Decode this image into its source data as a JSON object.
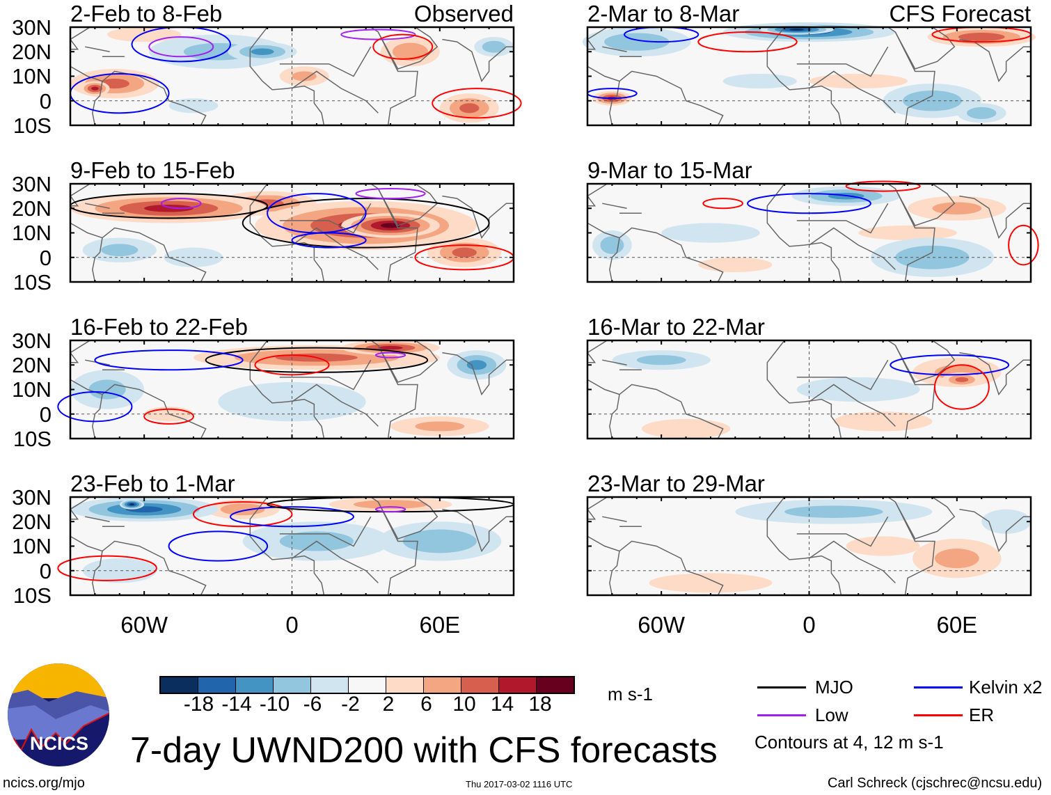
{
  "colorbar": {
    "colors": [
      "#0a2f5f",
      "#2166ac",
      "#4393c3",
      "#92c5de",
      "#d1e5f0",
      "#f7f7f7",
      "#fddbc7",
      "#f4a582",
      "#d6604d",
      "#b2182b",
      "#67001f"
    ],
    "labels": [
      "-18",
      "-14",
      "-10",
      "-6",
      "-2",
      "2",
      "6",
      "10",
      "14",
      "18"
    ],
    "units": "m s-1"
  },
  "lat_labels": [
    "30N",
    "20N",
    "10N",
    "0",
    "10S"
  ],
  "lon_labels": [
    "60W",
    "0",
    "60E"
  ],
  "legend": {
    "mjo": "MJO",
    "kelvin": "Kelvin x2",
    "low": "Low",
    "er": "ER",
    "contours_note": "Contours at 4, 12 m s-1",
    "colors": {
      "mjo": "#000000",
      "kelvin": "#0000ff",
      "low": "#a020f0",
      "er": "#ff0000"
    }
  },
  "title": "7-day UWND200 with CFS forecasts",
  "logo_text": "NCICS",
  "footer": {
    "url": "ncics.org/mjo",
    "timestamp": "Thu 2017-03-02 1116 UTC",
    "author": "Carl Schreck (cjschrec@ncsu.edu)"
  },
  "panels": [
    {
      "title": "2-Feb to 8-Feb",
      "label": "Observed",
      "blobs": [
        [
          -30,
          20,
          28,
          7,
          -6
        ],
        [
          -12,
          20,
          14,
          4,
          -10
        ],
        [
          -72,
          7,
          18,
          6,
          10
        ],
        [
          -80,
          5,
          6,
          3,
          14
        ],
        [
          48,
          20,
          12,
          6,
          8
        ],
        [
          72,
          -3,
          12,
          6,
          10
        ],
        [
          5,
          10,
          10,
          4,
          6
        ],
        [
          82,
          22,
          8,
          4,
          -8
        ],
        [
          -60,
          27,
          15,
          3,
          4
        ],
        [
          -40,
          -2,
          10,
          3,
          -4
        ]
      ],
      "contours": [
        [
          "kelvin",
          -45,
          23,
          20,
          7
        ],
        [
          "low",
          -45,
          22,
          13,
          4
        ],
        [
          "low",
          35,
          27,
          15,
          2
        ],
        [
          "er",
          45,
          22,
          12,
          5
        ],
        [
          "er",
          75,
          -1,
          18,
          6
        ],
        [
          "kelvin",
          -70,
          3,
          20,
          8
        ]
      ]
    },
    {
      "title": "2-Mar to 8-Mar",
      "label": "CFS Forecast",
      "blobs": [
        [
          0,
          28,
          35,
          4,
          -14
        ],
        [
          -5,
          29,
          15,
          2,
          -18
        ],
        [
          -70,
          24,
          22,
          6,
          -8
        ],
        [
          -80,
          1,
          8,
          3,
          14
        ],
        [
          70,
          26,
          22,
          4,
          12
        ],
        [
          50,
          0,
          20,
          7,
          -8
        ],
        [
          70,
          -5,
          10,
          4,
          -8
        ],
        [
          -20,
          8,
          15,
          3,
          -4
        ],
        [
          20,
          8,
          20,
          3,
          4
        ]
      ],
      "contours": [
        [
          "er",
          -25,
          24,
          20,
          4
        ],
        [
          "er",
          70,
          27,
          20,
          3
        ],
        [
          "kelvin",
          -80,
          3,
          10,
          2
        ],
        [
          "kelvin",
          -60,
          27,
          15,
          3
        ]
      ]
    },
    {
      "title": "9-Feb to 15-Feb",
      "label": "",
      "blobs": [
        [
          -50,
          20,
          40,
          6,
          14
        ],
        [
          30,
          13,
          45,
          10,
          14
        ],
        [
          40,
          13,
          20,
          5,
          18
        ],
        [
          -10,
          22,
          20,
          5,
          10
        ],
        [
          -70,
          3,
          15,
          5,
          -6
        ],
        [
          -40,
          0,
          12,
          4,
          -4
        ],
        [
          70,
          2,
          15,
          6,
          10
        ]
      ],
      "contours": [
        [
          "mjo",
          -50,
          21,
          40,
          5
        ],
        [
          "mjo",
          30,
          14,
          50,
          10
        ],
        [
          "kelvin",
          10,
          18,
          20,
          8
        ],
        [
          "kelvin",
          15,
          7,
          15,
          3
        ],
        [
          "low",
          -45,
          22,
          8,
          2
        ],
        [
          "low",
          40,
          26,
          14,
          2
        ],
        [
          "er",
          70,
          0,
          20,
          5
        ]
      ]
    },
    {
      "title": "9-Mar to 15-Mar",
      "label": "",
      "blobs": [
        [
          15,
          25,
          22,
          4,
          -10
        ],
        [
          60,
          20,
          20,
          5,
          6
        ],
        [
          -80,
          5,
          8,
          6,
          -8
        ],
        [
          50,
          0,
          25,
          8,
          -8
        ],
        [
          -40,
          10,
          20,
          4,
          -3
        ],
        [
          40,
          10,
          20,
          3,
          4
        ],
        [
          -30,
          -3,
          15,
          3,
          4
        ]
      ],
      "contours": [
        [
          "kelvin",
          0,
          22,
          25,
          4
        ],
        [
          "er",
          -35,
          22,
          8,
          2
        ],
        [
          "er",
          87,
          5,
          6,
          8
        ],
        [
          "er",
          30,
          29,
          15,
          2
        ]
      ]
    },
    {
      "title": "16-Feb to 22-Feb",
      "label": "",
      "blobs": [
        [
          10,
          23,
          50,
          5,
          10
        ],
        [
          40,
          27,
          20,
          3,
          14
        ],
        [
          75,
          20,
          12,
          6,
          -10
        ],
        [
          -75,
          10,
          15,
          8,
          -6
        ],
        [
          0,
          5,
          30,
          8,
          -4
        ],
        [
          -50,
          0,
          10,
          3,
          4
        ],
        [
          60,
          -5,
          20,
          4,
          6
        ]
      ],
      "contours": [
        [
          "mjo",
          10,
          22,
          45,
          5
        ],
        [
          "kelvin",
          -50,
          22,
          30,
          4
        ],
        [
          "kelvin",
          -80,
          3,
          15,
          6
        ],
        [
          "er",
          -50,
          -1,
          10,
          3
        ],
        [
          "er",
          0,
          20,
          15,
          4
        ],
        [
          "low",
          40,
          24,
          6,
          1
        ]
      ]
    },
    {
      "title": "16-Mar to 22-Mar",
      "label": "",
      "blobs": [
        [
          -60,
          22,
          20,
          4,
          -6
        ],
        [
          60,
          17,
          18,
          6,
          6
        ],
        [
          62,
          14,
          8,
          3,
          10
        ],
        [
          -50,
          -6,
          18,
          4,
          4
        ],
        [
          30,
          -3,
          20,
          4,
          4
        ],
        [
          20,
          10,
          25,
          5,
          -2
        ]
      ],
      "contours": [
        [
          "kelvin",
          57,
          20,
          24,
          4
        ],
        [
          "er",
          62,
          11,
          11,
          9
        ]
      ]
    },
    {
      "title": "23-Feb to 1-Mar",
      "label": "",
      "blobs": [
        [
          -60,
          25,
          30,
          5,
          -14
        ],
        [
          -65,
          27,
          5,
          2,
          -18
        ],
        [
          60,
          12,
          25,
          8,
          -8
        ],
        [
          10,
          12,
          30,
          8,
          -6
        ],
        [
          -20,
          25,
          15,
          4,
          8
        ],
        [
          40,
          27,
          25,
          3,
          8
        ],
        [
          -70,
          0,
          15,
          5,
          -4
        ]
      ],
      "contours": [
        [
          "er",
          -75,
          1,
          20,
          5
        ],
        [
          "er",
          -20,
          23,
          20,
          5
        ],
        [
          "kelvin",
          -30,
          10,
          20,
          6
        ],
        [
          "kelvin",
          0,
          22,
          25,
          4
        ],
        [
          "mjo",
          40,
          27,
          50,
          3
        ],
        [
          "low",
          40,
          25,
          6,
          1
        ]
      ]
    },
    {
      "title": "23-Mar to 29-Mar",
      "label": "",
      "blobs": [
        [
          10,
          24,
          40,
          5,
          -6
        ],
        [
          60,
          5,
          18,
          8,
          6
        ],
        [
          -40,
          -5,
          25,
          4,
          4
        ],
        [
          30,
          10,
          15,
          4,
          4
        ],
        [
          80,
          20,
          10,
          5,
          -4
        ]
      ],
      "contours": []
    }
  ]
}
